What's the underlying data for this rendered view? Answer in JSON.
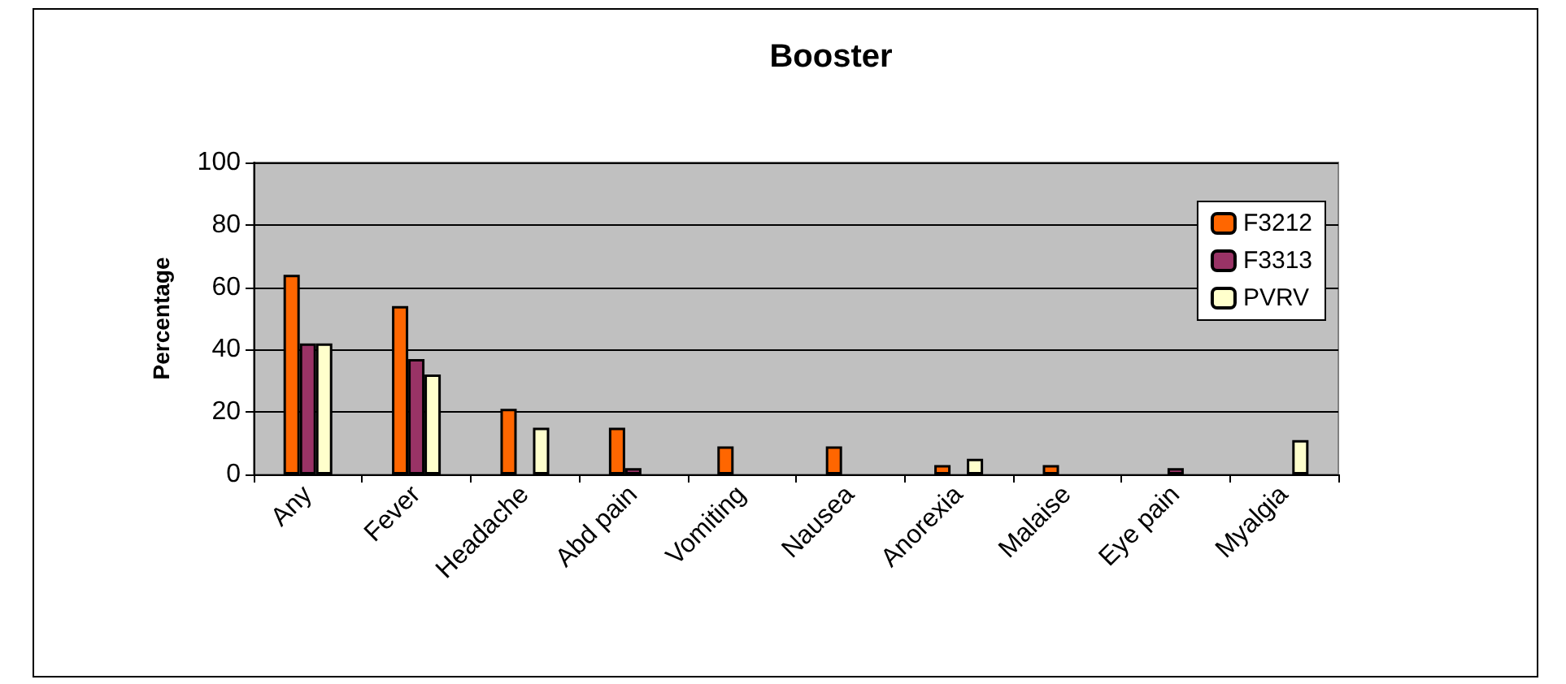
{
  "chart_data": {
    "type": "bar",
    "title": "Booster",
    "ylabel": "Percentage",
    "categories": [
      "Any",
      "Fever",
      "Headache",
      "Abd pain",
      "Vomiting",
      "Nausea",
      "Anorexia",
      "Malaise",
      "Eye pain",
      "Myalgia"
    ],
    "series": [
      {
        "name": "F3212",
        "color": "#ff6600",
        "values": [
          64,
          54,
          21,
          15,
          9,
          9,
          3,
          3,
          null,
          null
        ]
      },
      {
        "name": "F3313",
        "color": "#993366",
        "values": [
          42,
          37,
          null,
          2,
          null,
          null,
          null,
          null,
          2,
          null
        ]
      },
      {
        "name": "PVRV",
        "color": "#ffffcc",
        "values": [
          42,
          32,
          15,
          null,
          null,
          null,
          5,
          null,
          null,
          11
        ]
      }
    ],
    "ylim": [
      0,
      100
    ],
    "yticks": [
      0,
      20,
      40,
      60,
      80,
      100
    ],
    "grid": "y",
    "legend": "top right"
  }
}
